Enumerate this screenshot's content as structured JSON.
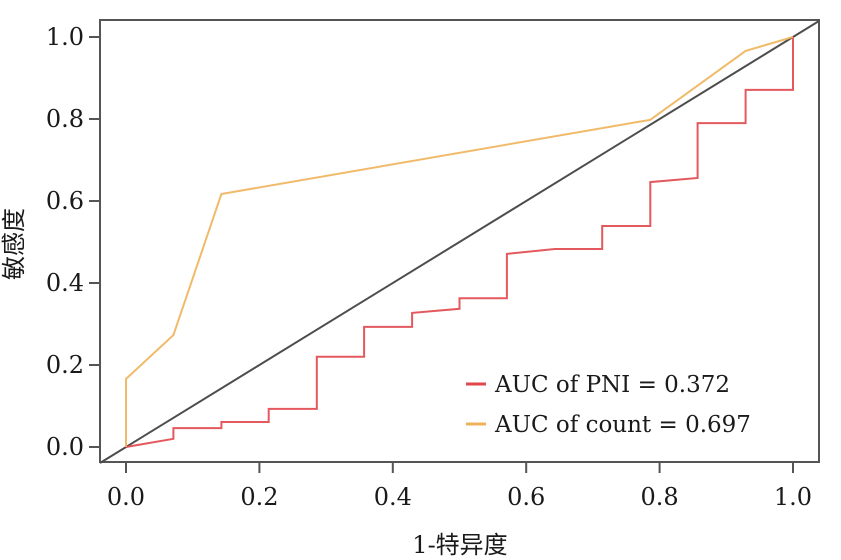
{
  "chart_data": {
    "type": "line",
    "title": "",
    "xlabel": "1-特异度",
    "ylabel": "敏感度",
    "xlim": [
      0,
      1
    ],
    "ylim": [
      0,
      1
    ],
    "xticks": [
      0.0,
      0.2,
      0.4,
      0.6,
      0.8,
      1.0
    ],
    "yticks": [
      0.0,
      0.2,
      0.4,
      0.6,
      0.8,
      1.0
    ],
    "xtick_labels": [
      "0.0",
      "0.2",
      "0.4",
      "0.6",
      "0.8",
      "1.0"
    ],
    "ytick_labels": [
      "0.0",
      "0.2",
      "0.4",
      "0.6",
      "0.8",
      "1.0"
    ],
    "grid": false,
    "legend_position": "bottom-right",
    "reference_line": {
      "name": "diagonal",
      "x": [
        0,
        1
      ],
      "y": [
        0,
        1
      ],
      "color": "#4d4d4d"
    },
    "series": [
      {
        "name": "AUC of PNI = 0.372",
        "color": "#E0474C",
        "x": [
          0,
          0.071,
          0.071,
          0.143,
          0.143,
          0.214,
          0.214,
          0.286,
          0.286,
          0.357,
          0.357,
          0.429,
          0.429,
          0.5,
          0.5,
          0.571,
          0.571,
          0.643,
          0.714,
          0.714,
          0.786,
          0.786,
          0.857,
          0.857,
          0.929,
          0.929,
          1.0,
          1.0
        ],
        "y": [
          0,
          0.02,
          0.046,
          0.046,
          0.061,
          0.061,
          0.093,
          0.093,
          0.22,
          0.22,
          0.293,
          0.293,
          0.327,
          0.337,
          0.363,
          0.363,
          0.471,
          0.483,
          0.483,
          0.539,
          0.539,
          0.646,
          0.656,
          0.79,
          0.79,
          0.871,
          0.871,
          1.0
        ]
      },
      {
        "name": "AUC of count = 0.697",
        "color": "#EFB25A",
        "x": [
          0,
          0,
          0.071,
          0.143,
          0.786,
          0.929,
          1.0
        ],
        "y": [
          0,
          0.166,
          0.273,
          0.617,
          0.798,
          0.966,
          1.0
        ]
      }
    ]
  }
}
